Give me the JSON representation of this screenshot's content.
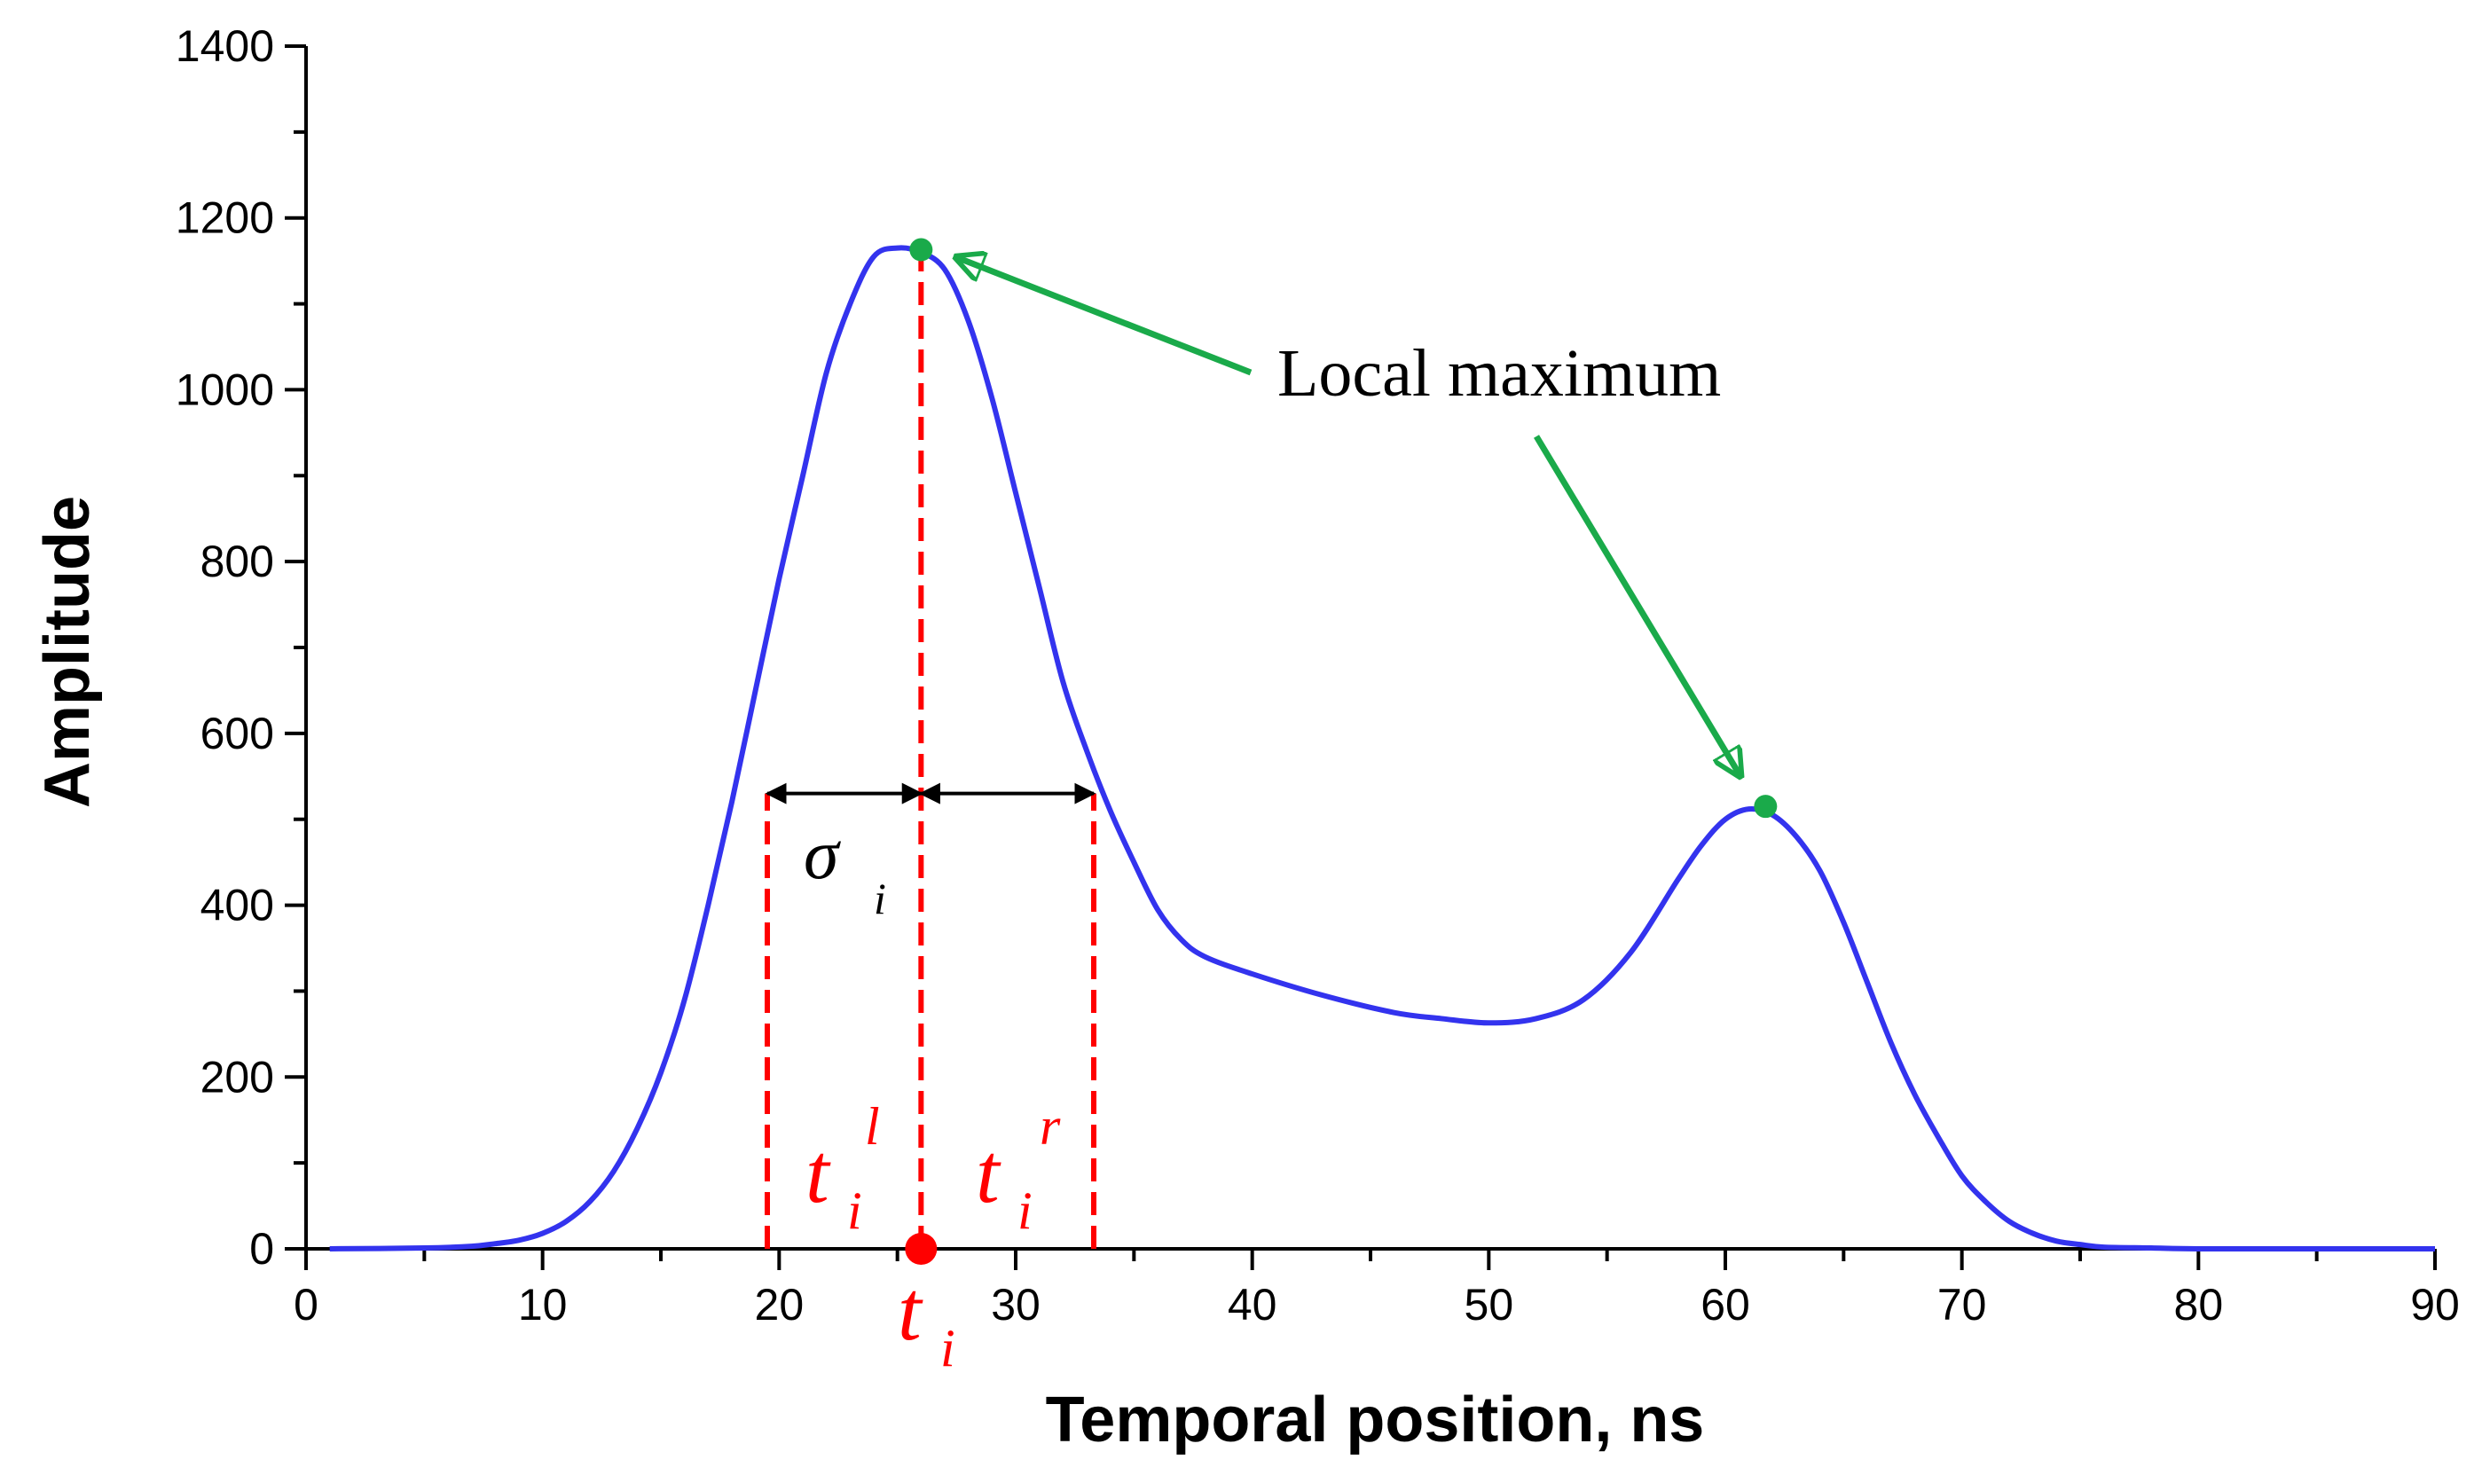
{
  "chart_data": {
    "type": "line",
    "title": "",
    "xlabel": "Temporal position, ns",
    "ylabel": "Amplitude",
    "xlim": [
      0,
      90
    ],
    "ylim": [
      0,
      1400
    ],
    "x_major_ticks": [
      0,
      10,
      20,
      30,
      40,
      50,
      60,
      70,
      80,
      90
    ],
    "x_tick_labels": [
      "0",
      "10",
      "20",
      "30",
      "40",
      "50",
      "60",
      "70",
      "80",
      "90"
    ],
    "y_major_ticks": [
      0,
      200,
      400,
      600,
      800,
      1000,
      1200,
      1400
    ],
    "y_tick_labels": [
      "0",
      "200",
      "400",
      "600",
      "800",
      "1000",
      "1200",
      "1400"
    ],
    "grid": false,
    "series": [
      {
        "color": "#3333ee",
        "x": [
          1,
          5,
          7,
          8,
          9,
          10,
          11,
          12,
          13,
          14,
          15,
          16,
          17,
          18,
          19,
          20,
          21,
          22,
          23,
          24,
          25,
          26,
          27,
          28,
          29,
          30,
          31,
          32,
          33,
          34,
          35,
          36,
          37,
          38,
          40,
          43,
          46,
          48,
          50,
          52,
          54,
          56,
          58,
          59,
          60,
          61,
          62,
          63,
          64,
          65,
          66,
          67,
          68,
          69,
          70,
          71,
          72,
          73,
          74,
          75,
          76,
          78,
          80,
          85,
          90
        ],
        "y": [
          0,
          1,
          3,
          6,
          10,
          18,
          32,
          55,
          90,
          140,
          205,
          290,
          400,
          520,
          650,
          780,
          900,
          1020,
          1100,
          1155,
          1165,
          1160,
          1140,
          1080,
          990,
          880,
          770,
          660,
          580,
          510,
          450,
          395,
          360,
          340,
          320,
          295,
          275,
          268,
          263,
          268,
          290,
          345,
          430,
          470,
          500,
          512,
          505,
          480,
          440,
          380,
          310,
          240,
          180,
          130,
          85,
          55,
          32,
          18,
          9,
          5,
          2,
          1,
          0,
          0,
          0
        ]
      }
    ],
    "points": [
      {
        "x": 26,
        "y": 1163,
        "color": "#1aaa4a"
      },
      {
        "x": 61.7,
        "y": 515,
        "color": "#1aaa4a"
      },
      {
        "x": 26,
        "y": 0,
        "color": "#ff0000"
      }
    ],
    "vertical_dashed_lines": [
      {
        "x": 19.5,
        "y0": 0,
        "y1": 530
      },
      {
        "x": 26,
        "y0": 0,
        "y1": 1163
      },
      {
        "x": 33.3,
        "y0": 0,
        "y1": 530
      }
    ],
    "width_arrows": [
      {
        "x0": 19.5,
        "x1": 26,
        "y": 530
      },
      {
        "x0": 26,
        "x1": 33.3,
        "y": 530
      }
    ],
    "annotations": {
      "local_max_label": "Local maximum",
      "sigma_symbol": "σ",
      "sigma_sub": "i",
      "t_symbol": "t",
      "t_sub": "i",
      "t_left_sup": "l",
      "t_right_sup": "r"
    },
    "colors": {
      "curve": "#3333ee",
      "maxima": "#1aaa4a",
      "dashed": "#ff0000",
      "arrow": "#1aaa4a"
    }
  }
}
